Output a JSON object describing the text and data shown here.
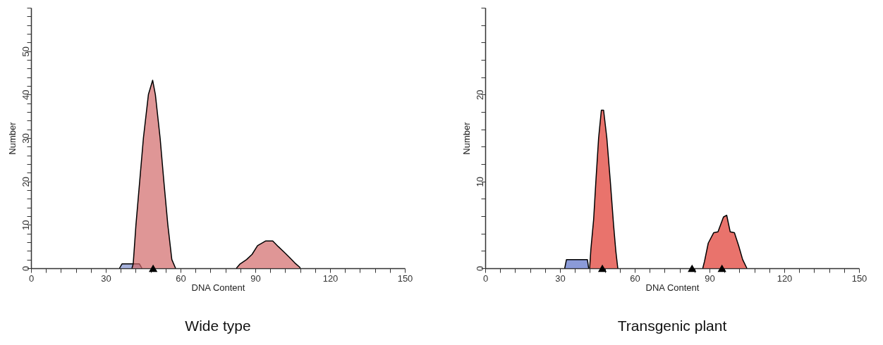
{
  "chart_data": [
    {
      "type": "area",
      "title": "Wide type",
      "xlabel": "DNA Content",
      "ylabel": "Number",
      "xlim": [
        0,
        150
      ],
      "ylim": [
        0,
        60
      ],
      "grid": false,
      "xticks": [
        0,
        {
          "value": 6,
          "label": null
        },
        {
          "value": 12,
          "label": null
        },
        {
          "value": 18,
          "label": null
        },
        {
          "value": 24,
          "label": null
        },
        30,
        {
          "value": 36,
          "label": null
        },
        {
          "value": 42,
          "label": null
        },
        {
          "value": 48,
          "label": null
        },
        {
          "value": 54,
          "label": null
        },
        60,
        {
          "value": 66,
          "label": null
        },
        {
          "value": 72,
          "label": null
        },
        {
          "value": 78,
          "label": null
        },
        {
          "value": 84,
          "label": null
        },
        90,
        {
          "value": 96,
          "label": null
        },
        {
          "value": 102,
          "label": null
        },
        {
          "value": 108,
          "label": null
        },
        {
          "value": 114,
          "label": null
        },
        120,
        {
          "value": 126,
          "label": null
        },
        {
          "value": 132,
          "label": null
        },
        {
          "value": 138,
          "label": null
        },
        {
          "value": 144,
          "label": null
        },
        150
      ],
      "yticks": [
        0,
        {
          "value": 2,
          "label": null
        },
        {
          "value": 4,
          "label": null
        },
        {
          "value": 6,
          "label": null
        },
        {
          "value": 8,
          "label": null
        },
        10,
        {
          "value": 12,
          "label": null
        },
        {
          "value": 14,
          "label": null
        },
        {
          "value": 16,
          "label": null
        },
        {
          "value": 18,
          "label": null
        },
        20,
        {
          "value": 22,
          "label": null
        },
        {
          "value": 24,
          "label": null
        },
        {
          "value": 26,
          "label": null
        },
        {
          "value": 28,
          "label": null
        },
        30,
        {
          "value": 32,
          "label": null
        },
        {
          "value": 34,
          "label": null
        },
        {
          "value": 36,
          "label": null
        },
        {
          "value": 38,
          "label": null
        },
        40,
        {
          "value": 42,
          "label": null
        },
        {
          "value": 44,
          "label": null
        },
        {
          "value": 46,
          "label": null
        },
        {
          "value": 48,
          "label": null
        },
        50,
        {
          "value": 52,
          "label": null
        },
        {
          "value": 54,
          "label": null
        },
        {
          "value": 56,
          "label": null
        },
        {
          "value": 58,
          "label": null
        },
        {
          "value": 60,
          "label": null
        }
      ],
      "series": [
        {
          "color": "#8090cc",
          "x": [
            35.5,
            36.5,
            43.5,
            44.5
          ],
          "values": [
            0,
            1,
            1,
            0
          ]
        },
        {
          "color": "#d26a6a",
          "x": [
            40.5,
            41,
            42.1,
            43.6,
            45.1,
            47.1,
            48.8,
            49.9,
            51.8,
            53.3,
            54.9,
            56.5,
            58
          ],
          "values": [
            0,
            1,
            10,
            20,
            30,
            40,
            43.3,
            40,
            30,
            20,
            10,
            2,
            0
          ]
        },
        {
          "color": "#d26a6a",
          "x": [
            82.4,
            83.9,
            86.5,
            88.7,
            90.9,
            94.2,
            97,
            99.2,
            101.4,
            103.7,
            105.9,
            107.9,
            108
          ],
          "values": [
            0,
            1,
            2,
            3.2,
            5.2,
            6.3,
            6.3,
            5,
            3.8,
            2.5,
            1.2,
            0.2,
            0
          ]
        },
        {
          "type": "scatter",
          "marker": "triangle",
          "color": "#000000",
          "x": [
            49
          ],
          "values": [
            0
          ]
        }
      ]
    },
    {
      "type": "area",
      "title": "Transgenic plant",
      "xlabel": "DNA Content",
      "ylabel": "Number",
      "xlim": [
        0,
        150
      ],
      "ylim": [
        0,
        30
      ],
      "grid": false,
      "xticks": [
        0,
        {
          "value": 6,
          "label": null
        },
        {
          "value": 12,
          "label": null
        },
        {
          "value": 18,
          "label": null
        },
        {
          "value": 24,
          "label": null
        },
        30,
        {
          "value": 36,
          "label": null
        },
        {
          "value": 42,
          "label": null
        },
        {
          "value": 48,
          "label": null
        },
        {
          "value": 54,
          "label": null
        },
        60,
        {
          "value": 66,
          "label": null
        },
        {
          "value": 72,
          "label": null
        },
        {
          "value": 78,
          "label": null
        },
        {
          "value": 84,
          "label": null
        },
        90,
        {
          "value": 96,
          "label": null
        },
        {
          "value": 102,
          "label": null
        },
        {
          "value": 108,
          "label": null
        },
        {
          "value": 114,
          "label": null
        },
        120,
        {
          "value": 126,
          "label": null
        },
        {
          "value": 132,
          "label": null
        },
        {
          "value": 138,
          "label": null
        },
        {
          "value": 144,
          "label": null
        },
        150
      ],
      "yticks": [
        0,
        {
          "value": 2,
          "label": null
        },
        {
          "value": 4,
          "label": null
        },
        {
          "value": 6,
          "label": null
        },
        {
          "value": 8,
          "label": null
        },
        10,
        {
          "value": 12,
          "label": null
        },
        {
          "value": 14,
          "label": null
        },
        {
          "value": 16,
          "label": null
        },
        {
          "value": 18,
          "label": null
        },
        20,
        {
          "value": 22,
          "label": null
        },
        {
          "value": 24,
          "label": null
        },
        {
          "value": 26,
          "label": null
        },
        {
          "value": 28,
          "label": null
        },
        {
          "value": 30,
          "label": null
        }
      ],
      "series": [
        {
          "color": "#5a70c8",
          "x": [
            31.9,
            32.6,
            41,
            41.5
          ],
          "values": [
            0,
            1,
            1,
            0
          ]
        },
        {
          "color": "#e0382e",
          "x": [
            41.9,
            42.4,
            43.5,
            44.4,
            45.5,
            46.6,
            47.5,
            48.8,
            50.2,
            51.5,
            52.4,
            53.2
          ],
          "values": [
            0,
            2.2,
            5.6,
            10,
            15,
            18.2,
            18.2,
            15,
            10,
            5,
            2,
            0
          ]
        },
        {
          "color": "#e0382e",
          "x": [
            87.3,
            88,
            89.5,
            91.7,
            93.4,
            95.6,
            96.9,
            98.3,
            100,
            101.7,
            103.3,
            105
          ],
          "values": [
            0,
            0.8,
            2.9,
            4.1,
            4.2,
            5.9,
            6.1,
            4.2,
            4.1,
            2.6,
            1,
            0
          ]
        },
        {
          "type": "scatter",
          "marker": "triangle",
          "color": "#000000",
          "x": [
            47,
            83,
            95
          ],
          "values": [
            0,
            0,
            0
          ]
        }
      ]
    }
  ]
}
